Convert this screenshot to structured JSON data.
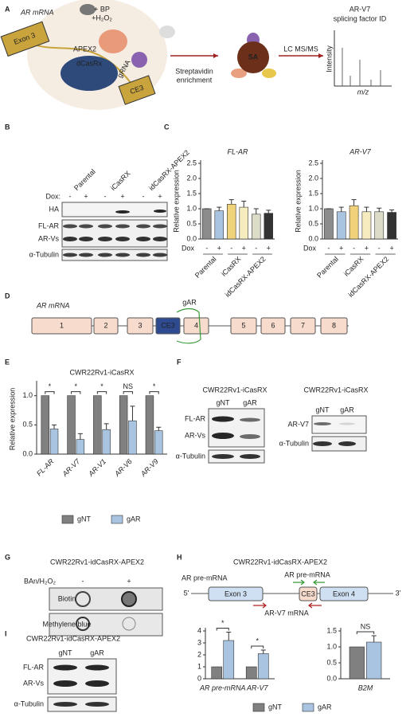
{
  "panel_letters": [
    "A",
    "B",
    "C",
    "D",
    "E",
    "F",
    "G",
    "H",
    "I"
  ],
  "panel_a": {
    "ar_mrna": "AR mRNA",
    "exon3": "Exon 3",
    "reagents": [
      "+ BP",
      "+H₂O₂"
    ],
    "apex2": "APEX2",
    "dcasrx": "dCasRx",
    "grna": "gRNA",
    "ce3": "CE3",
    "enrichment": [
      "Streptavidin",
      "enrichment"
    ],
    "sa": "SA",
    "lcms": "LC MS/MS",
    "result": [
      "AR-V7",
      "splicing factor ID"
    ],
    "y_axis": "Intensity",
    "x_axis": "m/z"
  },
  "panel_b": {
    "lanes": [
      "Parental",
      "iCasRX",
      "idCasRX-APEX2"
    ],
    "dox": "Dox:",
    "dox_signs": [
      "-",
      "+",
      "-",
      "+",
      "-",
      "+"
    ],
    "rows": [
      "HA",
      "FL-AR",
      "AR-Vs",
      "α-Tubulin"
    ]
  },
  "panel_d": {
    "title": "AR mRNA",
    "exons": [
      "1",
      "2",
      "3",
      "CE3",
      "4",
      "5",
      "6",
      "7",
      "8"
    ],
    "guide": "gAR"
  },
  "panel_f": {
    "blots": [
      {
        "title": "CWR22Rv1-iCasRX",
        "lanes": [
          "gNT",
          "gAR"
        ],
        "rows": [
          "FL-AR",
          "AR-Vs",
          "α-Tubulin"
        ]
      },
      {
        "title": "CWR22Rv1-iCasRX",
        "lanes": [
          "gNT",
          "gAR"
        ],
        "rows": [
          "AR-V7",
          "α-Tubulin"
        ]
      }
    ]
  },
  "panel_g": {
    "title": "CWR22Rv1-idCasRX-APEX2",
    "treatment": "BAn/H₂O₂",
    "signs": [
      "-",
      "+"
    ],
    "rows": [
      "Biotin",
      "Methylene blue"
    ]
  },
  "panel_h": {
    "title": "CWR22Rv1-idCasRX-APEX2",
    "gene": "AR pre-mRNA",
    "ends": [
      "5'",
      "3'"
    ],
    "boxes": [
      "Exon 3",
      "CE3",
      "Exon 4"
    ],
    "forward": "AR pre-mRNA",
    "reverse": "AR-V7 mRNA"
  },
  "panel_i": {
    "title": "CWR22Rv1-idCasRX-APEX2",
    "lanes": [
      "gNT",
      "gAR"
    ],
    "rows": [
      "FL-AR",
      "AR-Vs",
      "α-Tubulin"
    ]
  },
  "chart_data": [
    {
      "type": "bar",
      "title": "FL-AR",
      "y_label": "Relative expression",
      "dox_label": "Dox",
      "categories": [
        "-",
        "+",
        "-",
        "+",
        "-",
        "+"
      ],
      "groups": [
        "Parental",
        "iCasRX",
        "idCasRX-APEX2"
      ],
      "series": [
        {
          "colors": [
            "#8c8c8c",
            "#a9c4e0",
            "#f0d27a",
            "#f7ebc0",
            "#dcdcc8",
            "#333333"
          ],
          "values": [
            1.0,
            0.93,
            1.15,
            1.05,
            0.82,
            0.85
          ],
          "errors": [
            0,
            0.12,
            0.15,
            0.2,
            0.18,
            0.1
          ]
        }
      ],
      "ylim": [
        0,
        2.5
      ],
      "yticks": [
        {
          "value": 0,
          "label": "0.0"
        },
        0.5,
        {
          "value": 1,
          "label": "1.0"
        },
        1.5,
        {
          "value": 2,
          "label": "2.0"
        },
        2.5
      ]
    },
    {
      "type": "bar",
      "title": "AR-V7",
      "y_label": "Relative expression",
      "dox_label": "Dox",
      "categories": [
        "-",
        "+",
        "-",
        "+",
        "-",
        "+"
      ],
      "groups": [
        "Parental",
        "iCasRX",
        "idCasRX-APEX2"
      ],
      "series": [
        {
          "colors": [
            "#8c8c8c",
            "#a9c4e0",
            "#f0d27a",
            "#f7ebc0",
            "#dcdcc8",
            "#333333"
          ],
          "values": [
            1.0,
            0.9,
            1.1,
            0.9,
            0.9,
            0.88
          ],
          "errors": [
            0,
            0.15,
            0.2,
            0.15,
            0.12,
            0.08
          ]
        }
      ],
      "ylim": [
        0,
        2.5
      ],
      "yticks": [
        {
          "value": 0,
          "label": "0.0"
        },
        0.5,
        {
          "value": 1,
          "label": "1.0"
        },
        1.5,
        {
          "value": 2,
          "label": "2.0"
        },
        2.5
      ]
    },
    {
      "type": "bar",
      "title": "CWR22Rv1-iCasRX",
      "y_label": "Relative expression",
      "categories": [
        "FL-AR",
        "AR-V7",
        "AR-V1",
        "AR-V6",
        "AR-V9"
      ],
      "series": [
        {
          "name": "gNT",
          "color": "#808080",
          "values": [
            1,
            1,
            1,
            1,
            1
          ]
        },
        {
          "name": "gAR",
          "color": "#a9c4e0",
          "values": [
            0.43,
            0.25,
            0.42,
            0.57,
            0.4
          ],
          "errors": [
            0.07,
            0.1,
            0.1,
            0.25,
            0.06
          ]
        }
      ],
      "significance": [
        "*",
        "*",
        "*",
        "NS",
        "*"
      ],
      "ylim": [
        0,
        1.2
      ],
      "yticks": [
        {
          "value": 0,
          "label": "0.0"
        },
        0.5,
        {
          "value": 1,
          "label": "1.0"
        }
      ]
    },
    {
      "type": "bar",
      "categories": [
        "AR pre-mRNA",
        "AR-V7"
      ],
      "series": [
        {
          "name": "gNT",
          "color": "#808080",
          "values": [
            1,
            1
          ]
        },
        {
          "name": "gAR",
          "color": "#a9c4e0",
          "values": [
            3.2,
            2.1
          ],
          "errors": [
            0.7,
            0.3
          ]
        }
      ],
      "significance": [
        "*",
        "*"
      ],
      "ylim": [
        0,
        4
      ],
      "yticks": [
        0,
        1,
        2,
        3,
        4
      ]
    },
    {
      "type": "bar",
      "categories": [
        "B2M"
      ],
      "series": [
        {
          "color": "#808080",
          "values": [
            1
          ]
        },
        {
          "color": "#a9c4e0",
          "values": [
            1.15
          ],
          "errors": [
            0.2
          ]
        }
      ],
      "significance": [
        "NS"
      ],
      "ylim": [
        0,
        1.5
      ],
      "yticks": [
        {
          "value": 0,
          "label": "0.0"
        },
        0.5,
        {
          "value": 1,
          "label": "1.0"
        },
        1.5
      ]
    }
  ]
}
